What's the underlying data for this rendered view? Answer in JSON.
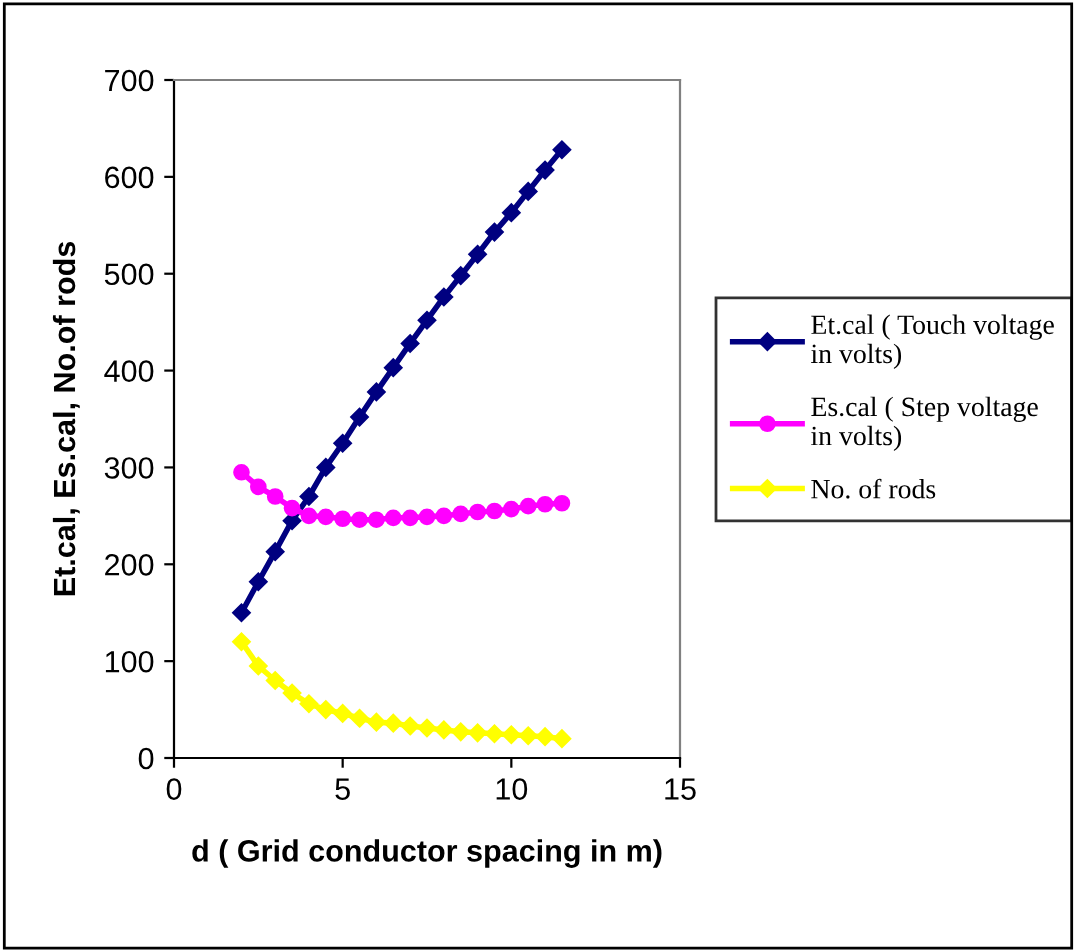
{
  "chart_data": {
    "type": "line",
    "xlabel": "d ( Grid conductor spacing in m)",
    "ylabel": "Et.cal, Es.cal, No.of rods",
    "x": [
      2,
      2.5,
      3,
      3.5,
      4,
      4.5,
      5,
      5.5,
      6,
      6.5,
      7,
      7.5,
      8,
      8.5,
      9,
      9.5,
      10,
      10.5,
      11,
      11.5
    ],
    "series": [
      {
        "name": "Et.cal ( Touch voltage in volts)",
        "color": "#000080",
        "marker": "diamond",
        "values": [
          150,
          182,
          213,
          245,
          270,
          300,
          325,
          352,
          378,
          403,
          428,
          452,
          476,
          498,
          520,
          543,
          563,
          585,
          607,
          628
        ]
      },
      {
        "name": "Es.cal ( Step voltage in volts)",
        "color": "#ff00ff",
        "marker": "circle",
        "values": [
          295,
          280,
          270,
          258,
          250,
          249,
          247,
          246,
          246,
          248,
          248,
          249,
          250,
          252,
          254,
          255,
          257,
          260,
          262,
          263
        ]
      },
      {
        "name": "No. of rods",
        "color": "#ffff00",
        "marker": "diamond",
        "values": [
          120,
          95,
          80,
          67,
          56,
          50,
          46,
          41,
          37,
          36,
          33,
          31,
          29,
          27,
          26,
          25,
          24,
          23,
          22,
          20
        ]
      }
    ],
    "xlim": [
      0,
      15
    ],
    "xticks": [
      0,
      5,
      10,
      15
    ],
    "ylim": [
      0,
      700
    ],
    "yticks": [
      0,
      100,
      200,
      300,
      400,
      500,
      600,
      700
    ],
    "grid": false,
    "legend": "right",
    "line_style": "solid"
  }
}
